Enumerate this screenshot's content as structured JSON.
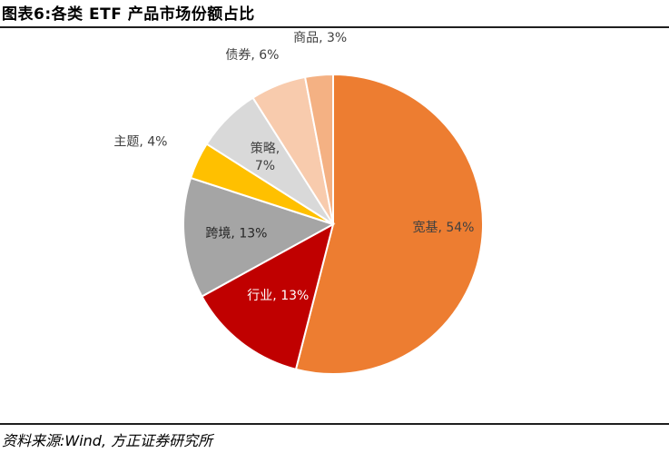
{
  "header": {
    "title": "图表6:各类 ETF 产品市场份额占比"
  },
  "footer": {
    "source": "资料来源:Wind, 方正证券研究所"
  },
  "chart_data": {
    "type": "pie",
    "slices": [
      {
        "label": "宽基",
        "value": 54,
        "text": "宽基, 54%",
        "color": "#ED7D31"
      },
      {
        "label": "行业",
        "value": 13,
        "text": "行业, 13%",
        "color": "#C00000"
      },
      {
        "label": "跨境",
        "value": 13,
        "text": "跨境, 13%",
        "color": "#A5A5A5"
      },
      {
        "label": "主题",
        "value": 4,
        "text": "主题, 4%",
        "color": "#FFC000"
      },
      {
        "label": "策略",
        "value": 7,
        "text": "策略,|7%",
        "color": "#D9D9D9"
      },
      {
        "label": "债券",
        "value": 6,
        "text": "债券, 6%",
        "color": "#F8CBAD"
      },
      {
        "label": "商品",
        "value": 3,
        "text": "商品, 3%",
        "color": "#F4B183"
      }
    ]
  }
}
